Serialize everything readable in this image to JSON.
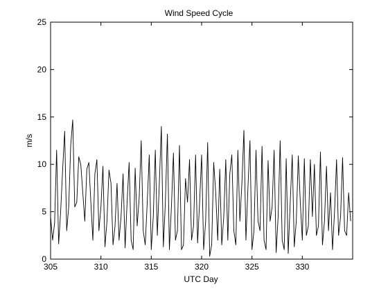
{
  "chart_data": {
    "type": "line",
    "title": "Wind Speed Cycle",
    "xlabel": "UTC Day",
    "ylabel": "m/s",
    "xlim": [
      305,
      335
    ],
    "ylim": [
      0,
      25
    ],
    "xticks": [
      305,
      310,
      315,
      320,
      325,
      330
    ],
    "yticks": [
      0,
      5,
      10,
      15,
      20,
      25
    ],
    "grid": false,
    "legend": "none",
    "series": [
      {
        "color": "#000000",
        "x": [
          305.0,
          305.2,
          305.4,
          305.6,
          305.8,
          306.0,
          306.2,
          306.4,
          306.6,
          306.8,
          307.0,
          307.2,
          307.4,
          307.6,
          307.8,
          308.0,
          308.2,
          308.4,
          308.6,
          308.8,
          309.0,
          309.2,
          309.4,
          309.6,
          309.8,
          310.0,
          310.2,
          310.4,
          310.6,
          310.8,
          311.0,
          311.2,
          311.4,
          311.6,
          311.8,
          312.0,
          312.2,
          312.4,
          312.6,
          312.8,
          313.0,
          313.2,
          313.4,
          313.6,
          313.8,
          314.0,
          314.2,
          314.4,
          314.6,
          314.8,
          315.0,
          315.2,
          315.4,
          315.6,
          315.8,
          316.0,
          316.2,
          316.4,
          316.6,
          316.8,
          317.0,
          317.2,
          317.4,
          317.6,
          317.8,
          318.0,
          318.2,
          318.4,
          318.6,
          318.8,
          319.0,
          319.2,
          319.4,
          319.6,
          319.8,
          320.0,
          320.2,
          320.4,
          320.6,
          320.8,
          321.0,
          321.2,
          321.4,
          321.6,
          321.8,
          322.0,
          322.2,
          322.4,
          322.6,
          322.8,
          323.0,
          323.2,
          323.4,
          323.6,
          323.8,
          324.0,
          324.2,
          324.4,
          324.6,
          324.8,
          325.0,
          325.2,
          325.4,
          325.6,
          325.8,
          326.0,
          326.2,
          326.4,
          326.6,
          326.8,
          327.0,
          327.2,
          327.4,
          327.6,
          327.8,
          328.0,
          328.2,
          328.4,
          328.6,
          328.8,
          329.0,
          329.2,
          329.4,
          329.6,
          329.8,
          330.0,
          330.2,
          330.4,
          330.6,
          330.8,
          331.0,
          331.2,
          331.4,
          331.6,
          331.8,
          332.0,
          332.2,
          332.4,
          332.6,
          332.8,
          333.0,
          333.2,
          333.4,
          333.6,
          333.8,
          334.0,
          334.2,
          334.4,
          334.6,
          334.8
        ],
        "y": [
          4.5,
          2.0,
          3.8,
          11.5,
          1.6,
          5.0,
          9.5,
          13.5,
          3.0,
          5.5,
          12.0,
          14.7,
          5.5,
          6.0,
          10.8,
          10.0,
          7.0,
          4.0,
          9.5,
          10.2,
          6.0,
          2.0,
          9.0,
          10.5,
          3.0,
          5.5,
          9.8,
          1.3,
          4.0,
          9.4,
          8.0,
          1.5,
          3.5,
          8.0,
          2.0,
          4.5,
          9.0,
          1.2,
          6.0,
          10.2,
          2.0,
          1.0,
          9.6,
          3.5,
          6.5,
          12.5,
          3.0,
          1.5,
          6.0,
          11.0,
          1.0,
          4.5,
          11.5,
          2.5,
          8.0,
          14.0,
          1.3,
          6.0,
          13.2,
          1.0,
          5.5,
          11.2,
          2.0,
          3.0,
          12.0,
          1.0,
          1.5,
          8.5,
          6.0,
          10.5,
          2.0,
          3.5,
          11.0,
          1.7,
          6.0,
          11.0,
          1.0,
          4.0,
          12.3,
          0.3,
          1.5,
          10.2,
          7.0,
          2.0,
          9.5,
          1.5,
          4.5,
          10.5,
          2.0,
          9.0,
          11.0,
          3.0,
          1.5,
          11.5,
          4.0,
          8.0,
          13.6,
          2.0,
          7.5,
          12.5,
          1.0,
          3.0,
          11.5,
          4.0,
          3.0,
          11.9,
          2.0,
          1.0,
          10.4,
          4.0,
          5.5,
          11.5,
          0.7,
          4.5,
          12.5,
          2.0,
          1.0,
          10.6,
          0.6,
          6.0,
          11.0,
          1.3,
          4.0,
          10.9,
          6.0,
          2.0,
          10.6,
          2.5,
          3.5,
          10.5,
          4.5,
          10.0,
          2.5,
          3.5,
          11.3,
          1.5,
          4.0,
          9.8,
          3.0,
          7.0,
          1.0,
          5.0,
          10.5,
          2.5,
          4.5,
          10.7,
          3.0,
          2.5,
          7.0,
          4.0
        ]
      }
    ]
  }
}
